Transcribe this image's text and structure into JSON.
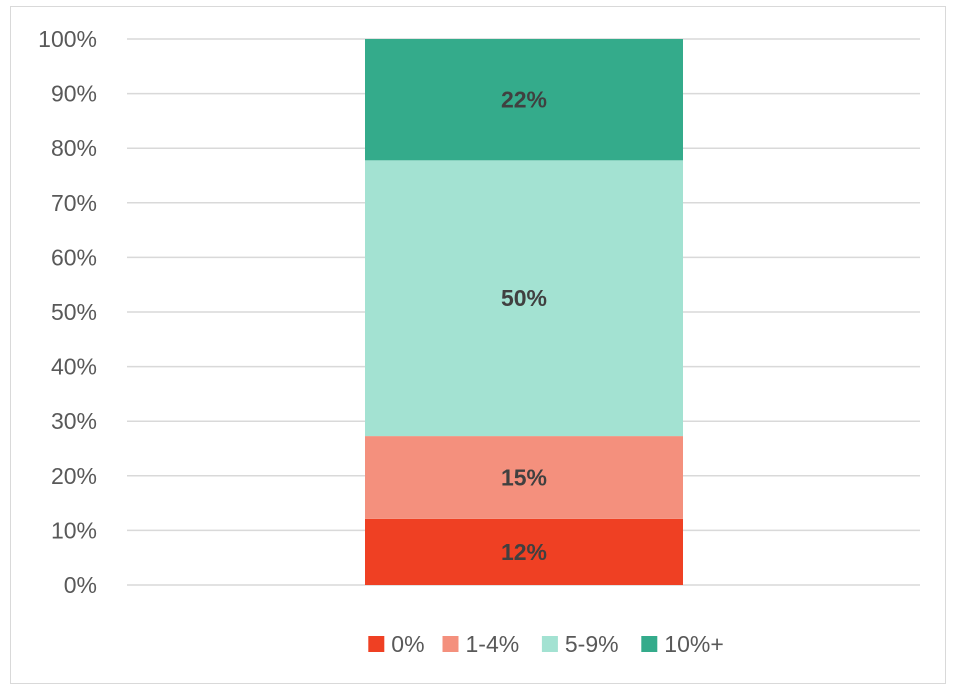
{
  "chart_data": {
    "type": "bar",
    "stacked": true,
    "percent_stacked": true,
    "categories": [
      ""
    ],
    "series": [
      {
        "name": "0%",
        "values": [
          12
        ],
        "label": "12%",
        "color": "#ef4023"
      },
      {
        "name": "1-4%",
        "values": [
          15
        ],
        "label": "15%",
        "color": "#f4907d"
      },
      {
        "name": "5-9%",
        "values": [
          50
        ],
        "label": "50%",
        "color": "#a3e2d2"
      },
      {
        "name": "10%+",
        "values": [
          22
        ],
        "label": "22%",
        "color": "#34ab8b"
      }
    ],
    "y_ticks": [
      "0%",
      "10%",
      "20%",
      "30%",
      "40%",
      "50%",
      "60%",
      "70%",
      "80%",
      "90%",
      "100%"
    ],
    "ylim": [
      0,
      100
    ],
    "grid": true,
    "gridline_color": "#d9d9d9",
    "legend_position": "bottom",
    "title": "",
    "xlabel": "",
    "ylabel": ""
  }
}
